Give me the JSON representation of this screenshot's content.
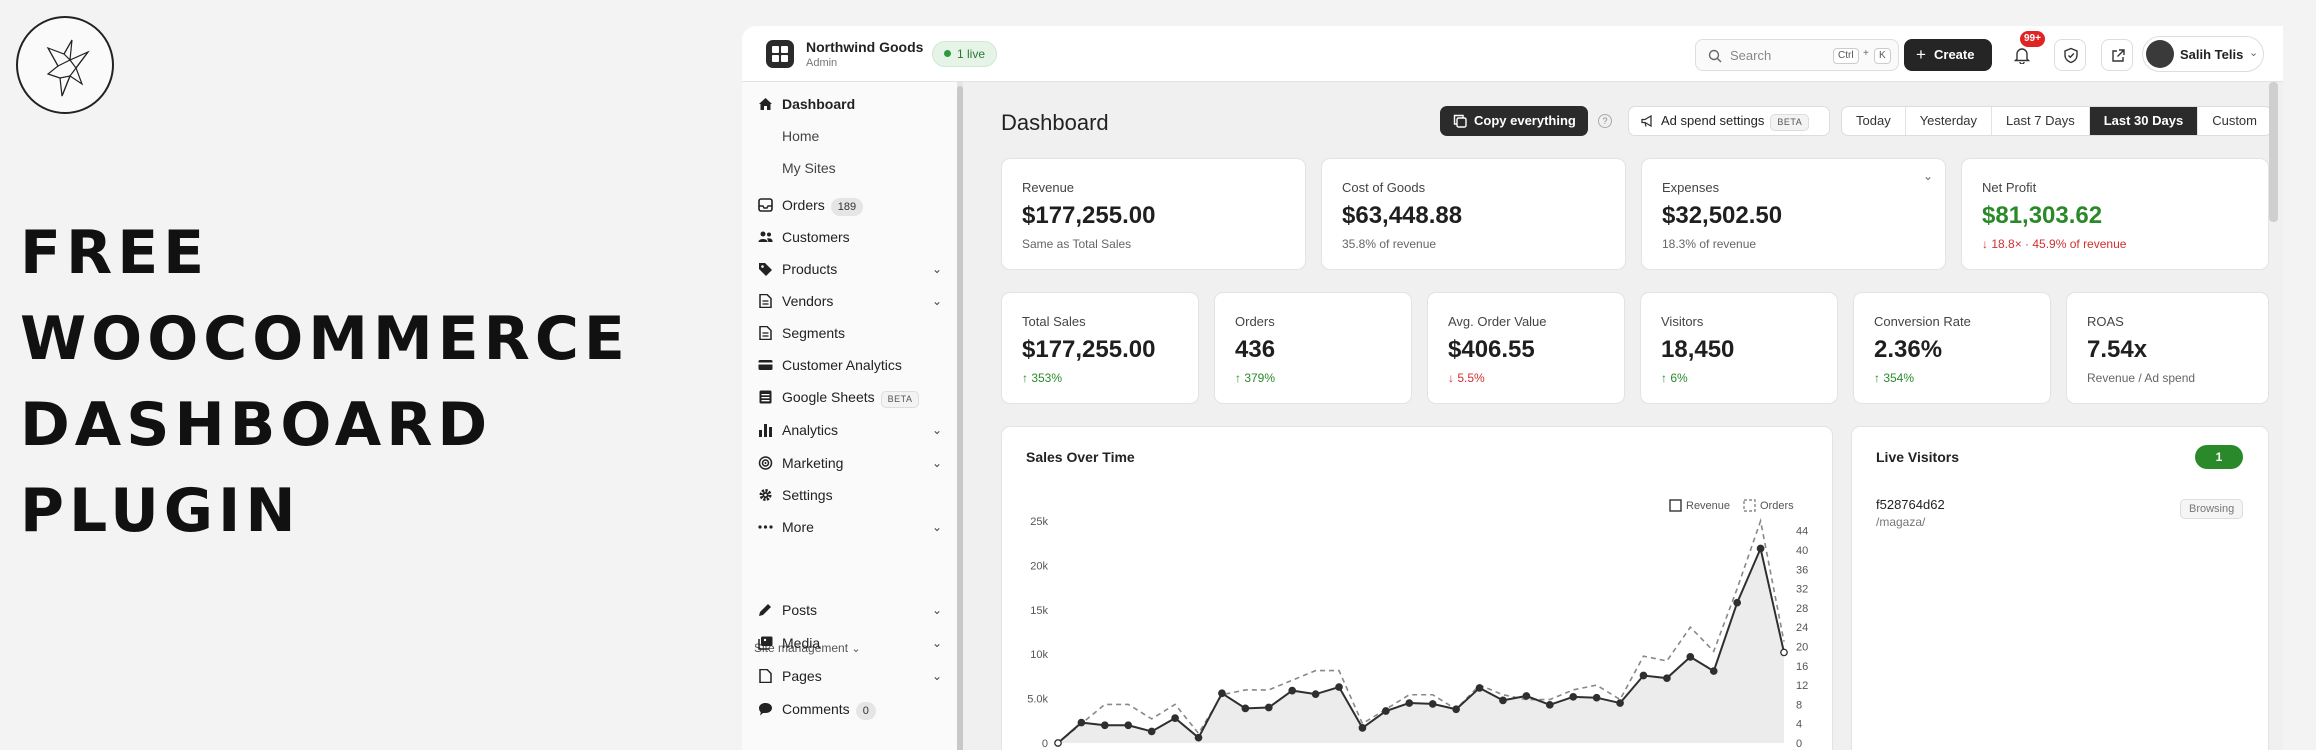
{
  "promo": {
    "lines": [
      "FREE",
      "WOOCOMMERCE",
      "DASHBOARD",
      "PLUGIN"
    ]
  },
  "topbar": {
    "store_name": "Northwind Goods",
    "store_role": "Admin",
    "live_label": "1 live",
    "search_placeholder": "Search",
    "shortcut_keys": [
      "Ctrl",
      "+",
      "K"
    ],
    "create_label": "Create",
    "notification_count": "99+",
    "user_name": "Salih Telis"
  },
  "sidebar": {
    "items": [
      {
        "label": "Dashboard",
        "icon": "home-icon"
      },
      {
        "label": "Home"
      },
      {
        "label": "My Sites"
      },
      {
        "label": "Orders",
        "count": "189",
        "icon": "inbox-icon"
      },
      {
        "label": "Customers",
        "icon": "users-icon"
      },
      {
        "label": "Products",
        "icon": "tag-icon"
      },
      {
        "label": "Vendors",
        "icon": "document-icon"
      },
      {
        "label": "Segments",
        "icon": "document-icon"
      },
      {
        "label": "Customer Analytics",
        "icon": "card-icon"
      },
      {
        "label": "Google Sheets",
        "badge": "BETA",
        "icon": "sheet-icon"
      },
      {
        "label": "Analytics",
        "icon": "bar-chart-icon"
      },
      {
        "label": "Marketing",
        "icon": "target-icon"
      },
      {
        "label": "Settings",
        "icon": "gear-icon"
      },
      {
        "label": "More",
        "icon": "ellipsis-icon"
      },
      {
        "label": "Posts",
        "icon": "pen-icon"
      },
      {
        "label": "Media",
        "icon": "media-icon"
      },
      {
        "label": "Pages",
        "icon": "page-icon"
      },
      {
        "label": "Comments",
        "count": "0",
        "icon": "comment-icon"
      }
    ],
    "section_label": "Site management"
  },
  "main": {
    "title": "Dashboard",
    "copy_label": "Copy everything",
    "help": "?",
    "adspend_label": "Ad spend settings",
    "adspend_badge": "BETA",
    "date_ranges": [
      "Today",
      "Yesterday",
      "Last 7 Days",
      "Last 30 Days",
      "Custom"
    ],
    "selected_range": "Last 30 Days"
  },
  "kpis_top": [
    {
      "label": "Revenue",
      "value": "$177,255.00",
      "sub": "Same as Total Sales"
    },
    {
      "label": "Cost of Goods",
      "value": "$63,448.88",
      "sub": "35.8% of revenue"
    },
    {
      "label": "Expenses",
      "value": "$32,502.50",
      "sub": "18.3% of revenue"
    },
    {
      "label": "Net Profit",
      "value": "$81,303.62",
      "sub": "↓ 18.8× · 45.9% of revenue"
    }
  ],
  "kpis_bottom": [
    {
      "label": "Total Sales",
      "value": "$177,255.00",
      "sub": "↑ 353%"
    },
    {
      "label": "Orders",
      "value": "436",
      "sub": "↑ 379%"
    },
    {
      "label": "Avg. Order Value",
      "value": "$406.55",
      "sub": "↓ 5.5%"
    },
    {
      "label": "Visitors",
      "value": "18,450",
      "sub": "↑ 6%"
    },
    {
      "label": "Conversion Rate",
      "value": "2.36%",
      "sub": "↑ 354%"
    },
    {
      "label": "ROAS",
      "value": "7.54x",
      "sub": "Revenue / Ad spend"
    }
  ],
  "colors": {
    "positive": "#2a8a2a",
    "negative": "#d03030",
    "dark": "#2b2b2b"
  },
  "chart_data": {
    "type": "line",
    "title": "Sales Over Time",
    "series": [
      {
        "name": "Revenue",
        "axis": "left",
        "values": [
          0,
          2300,
          2000,
          2000,
          1300,
          2800,
          600,
          5600,
          3900,
          4000,
          5900,
          5500,
          6300,
          1700,
          3600,
          4500,
          4400,
          3800,
          6200,
          4800,
          5300,
          4300,
          5200,
          5100,
          4500,
          7600,
          7300,
          9700,
          8100,
          15800,
          21900,
          10200
        ]
      },
      {
        "name": "Orders",
        "axis": "right",
        "values": [
          0,
          4,
          8,
          8,
          5,
          8,
          2,
          10,
          11,
          11,
          13,
          15,
          15,
          4,
          7,
          10,
          10,
          7,
          12,
          10,
          9,
          9,
          11,
          12,
          9,
          18,
          17,
          24,
          19,
          32,
          46,
          21
        ]
      }
    ],
    "y_left_ticks": [
      "0",
      "5.0k",
      "10k",
      "15k",
      "20k",
      "25k"
    ],
    "y_left_range": [
      0,
      25000
    ],
    "y_right_ticks": [
      "0",
      "4",
      "8",
      "12",
      "16",
      "20",
      "24",
      "28",
      "32",
      "36",
      "40",
      "44"
    ],
    "y_right_range": [
      0,
      46
    ],
    "legend_position": "top-right"
  },
  "live": {
    "title": "Live Visitors",
    "count": "1",
    "visitor_id": "f528764d62",
    "visitor_path": "/magaza/",
    "visitor_status": "Browsing"
  }
}
